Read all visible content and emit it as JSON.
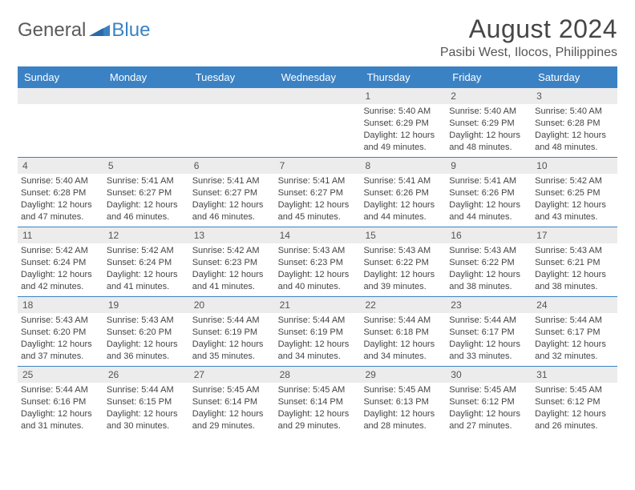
{
  "logo": {
    "general": "General",
    "blue": "Blue"
  },
  "title": "August 2024",
  "subtitle": "Pasibi West, Ilocos, Philippines",
  "colors": {
    "header_bg": "#3b82c4",
    "daynum_bg": "#ececec",
    "page_bg": "#ffffff",
    "text": "#444444",
    "title_text": "#464646"
  },
  "day_names": [
    "Sunday",
    "Monday",
    "Tuesday",
    "Wednesday",
    "Thursday",
    "Friday",
    "Saturday"
  ],
  "weeks": [
    [
      null,
      null,
      null,
      null,
      {
        "n": "1",
        "sr": "5:40 AM",
        "ss": "6:29 PM",
        "dl": "12 hours and 49 minutes."
      },
      {
        "n": "2",
        "sr": "5:40 AM",
        "ss": "6:29 PM",
        "dl": "12 hours and 48 minutes."
      },
      {
        "n": "3",
        "sr": "5:40 AM",
        "ss": "6:28 PM",
        "dl": "12 hours and 48 minutes."
      }
    ],
    [
      {
        "n": "4",
        "sr": "5:40 AM",
        "ss": "6:28 PM",
        "dl": "12 hours and 47 minutes."
      },
      {
        "n": "5",
        "sr": "5:41 AM",
        "ss": "6:27 PM",
        "dl": "12 hours and 46 minutes."
      },
      {
        "n": "6",
        "sr": "5:41 AM",
        "ss": "6:27 PM",
        "dl": "12 hours and 46 minutes."
      },
      {
        "n": "7",
        "sr": "5:41 AM",
        "ss": "6:27 PM",
        "dl": "12 hours and 45 minutes."
      },
      {
        "n": "8",
        "sr": "5:41 AM",
        "ss": "6:26 PM",
        "dl": "12 hours and 44 minutes."
      },
      {
        "n": "9",
        "sr": "5:41 AM",
        "ss": "6:26 PM",
        "dl": "12 hours and 44 minutes."
      },
      {
        "n": "10",
        "sr": "5:42 AM",
        "ss": "6:25 PM",
        "dl": "12 hours and 43 minutes."
      }
    ],
    [
      {
        "n": "11",
        "sr": "5:42 AM",
        "ss": "6:24 PM",
        "dl": "12 hours and 42 minutes."
      },
      {
        "n": "12",
        "sr": "5:42 AM",
        "ss": "6:24 PM",
        "dl": "12 hours and 41 minutes."
      },
      {
        "n": "13",
        "sr": "5:42 AM",
        "ss": "6:23 PM",
        "dl": "12 hours and 41 minutes."
      },
      {
        "n": "14",
        "sr": "5:43 AM",
        "ss": "6:23 PM",
        "dl": "12 hours and 40 minutes."
      },
      {
        "n": "15",
        "sr": "5:43 AM",
        "ss": "6:22 PM",
        "dl": "12 hours and 39 minutes."
      },
      {
        "n": "16",
        "sr": "5:43 AM",
        "ss": "6:22 PM",
        "dl": "12 hours and 38 minutes."
      },
      {
        "n": "17",
        "sr": "5:43 AM",
        "ss": "6:21 PM",
        "dl": "12 hours and 38 minutes."
      }
    ],
    [
      {
        "n": "18",
        "sr": "5:43 AM",
        "ss": "6:20 PM",
        "dl": "12 hours and 37 minutes."
      },
      {
        "n": "19",
        "sr": "5:43 AM",
        "ss": "6:20 PM",
        "dl": "12 hours and 36 minutes."
      },
      {
        "n": "20",
        "sr": "5:44 AM",
        "ss": "6:19 PM",
        "dl": "12 hours and 35 minutes."
      },
      {
        "n": "21",
        "sr": "5:44 AM",
        "ss": "6:19 PM",
        "dl": "12 hours and 34 minutes."
      },
      {
        "n": "22",
        "sr": "5:44 AM",
        "ss": "6:18 PM",
        "dl": "12 hours and 34 minutes."
      },
      {
        "n": "23",
        "sr": "5:44 AM",
        "ss": "6:17 PM",
        "dl": "12 hours and 33 minutes."
      },
      {
        "n": "24",
        "sr": "5:44 AM",
        "ss": "6:17 PM",
        "dl": "12 hours and 32 minutes."
      }
    ],
    [
      {
        "n": "25",
        "sr": "5:44 AM",
        "ss": "6:16 PM",
        "dl": "12 hours and 31 minutes."
      },
      {
        "n": "26",
        "sr": "5:44 AM",
        "ss": "6:15 PM",
        "dl": "12 hours and 30 minutes."
      },
      {
        "n": "27",
        "sr": "5:45 AM",
        "ss": "6:14 PM",
        "dl": "12 hours and 29 minutes."
      },
      {
        "n": "28",
        "sr": "5:45 AM",
        "ss": "6:14 PM",
        "dl": "12 hours and 29 minutes."
      },
      {
        "n": "29",
        "sr": "5:45 AM",
        "ss": "6:13 PM",
        "dl": "12 hours and 28 minutes."
      },
      {
        "n": "30",
        "sr": "5:45 AM",
        "ss": "6:12 PM",
        "dl": "12 hours and 27 minutes."
      },
      {
        "n": "31",
        "sr": "5:45 AM",
        "ss": "6:12 PM",
        "dl": "12 hours and 26 minutes."
      }
    ]
  ],
  "labels": {
    "sunrise": "Sunrise: ",
    "sunset": "Sunset: ",
    "daylight": "Daylight: "
  }
}
